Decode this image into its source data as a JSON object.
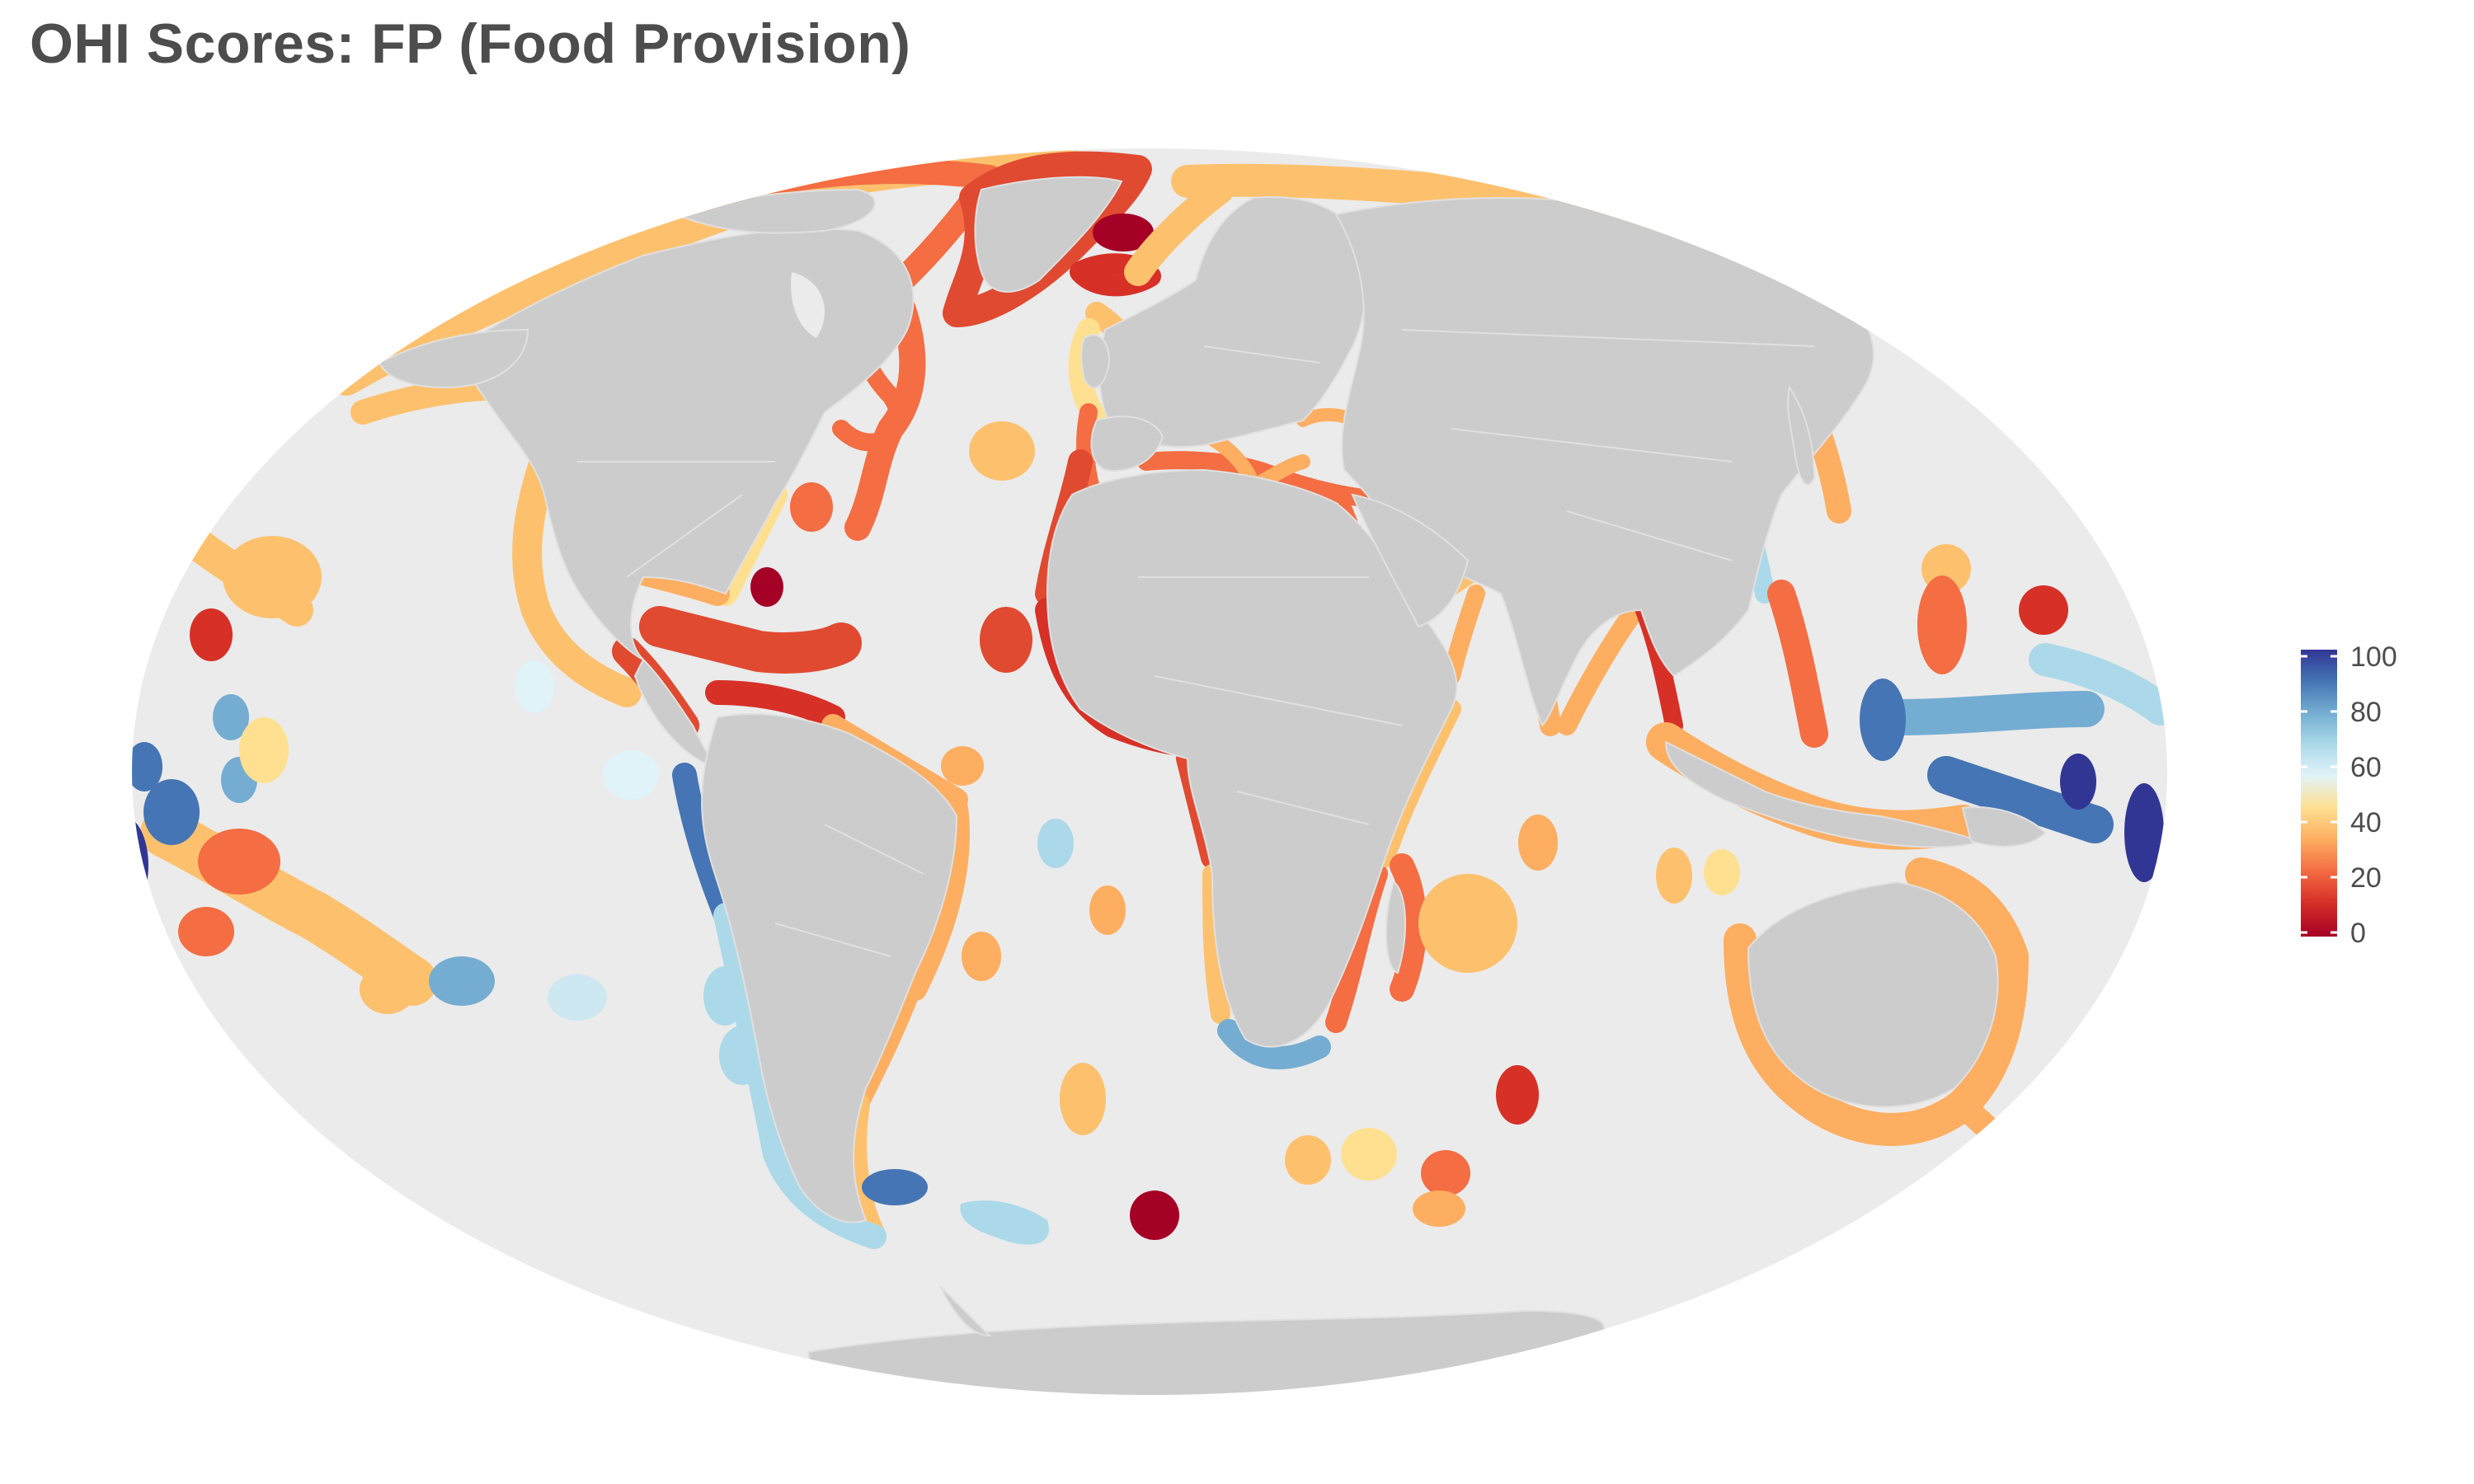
{
  "title": "OHI Scores: FP (Food Provision)",
  "map": {
    "projection": "Mollweide",
    "ocean_color": "#ebebeb",
    "land_color": "#cccccc",
    "border_color": "#e0e0e0"
  },
  "legend": {
    "placement": "right",
    "min": 0,
    "max": 100,
    "tick_labels": [
      "100",
      "80",
      "60",
      "40",
      "20",
      "0"
    ],
    "colors": [
      "#313695",
      "#4575b4",
      "#74add1",
      "#abd9e9",
      "#e0f3f8",
      "#fee090",
      "#fdae61",
      "#f46d43",
      "#d73027",
      "#a50026"
    ]
  },
  "scale_colors": {
    "c0": "#a50026",
    "c20": "#d73027",
    "c30": "#f46d43",
    "c45": "#fdae61",
    "c55": "#fdc16e",
    "c62": "#fee090",
    "c75": "#cde8f0",
    "c80": "#abd9e9",
    "c85": "#74add1",
    "c90": "#4575b4",
    "c100": "#313695"
  }
}
